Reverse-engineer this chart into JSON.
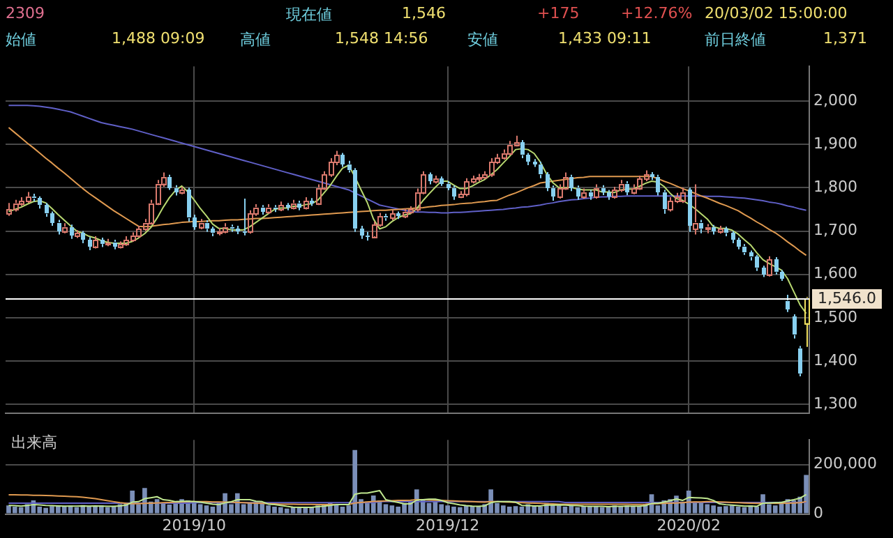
{
  "chart_data": [
    {
      "type": "candlestick",
      "annotations": [
        "2309",
        "現在値",
        "1,546",
        "+175",
        "+12.76%",
        "20/03/02 15:00:00",
        "始値",
        "1,488 09:09",
        "高値",
        "1,548 14:56",
        "安値",
        "1,433 09:11",
        "前日終値",
        "1,371"
      ],
      "categories": [
        null,
        null,
        null,
        null,
        null,
        null,
        null,
        null,
        null,
        null,
        null,
        null,
        null,
        null,
        null,
        null,
        null,
        null,
        null,
        null,
        null,
        null,
        null,
        null,
        null,
        null,
        null,
        null,
        null,
        null,
        "2019/10",
        null,
        null,
        null,
        null,
        null,
        null,
        null,
        null,
        null,
        null,
        null,
        null,
        null,
        null,
        null,
        null,
        null,
        null,
        null,
        null,
        null,
        null,
        null,
        null,
        null,
        null,
        null,
        null,
        null,
        null,
        null,
        null,
        null,
        null,
        null,
        null,
        null,
        null,
        null,
        null,
        "2019/12",
        null,
        null,
        null,
        null,
        null,
        null,
        null,
        null,
        null,
        null,
        null,
        null,
        null,
        null,
        null,
        null,
        null,
        null,
        null,
        null,
        null,
        null,
        null,
        null,
        null,
        null,
        null,
        null,
        null,
        null,
        null,
        null,
        null,
        null,
        null,
        null,
        null,
        null,
        "2020/02",
        null,
        null,
        null,
        null,
        null,
        null,
        null,
        null,
        null,
        null,
        null,
        null,
        null,
        null,
        null,
        null,
        null,
        null,
        null
      ],
      "ohlc": [
        [
          1740,
          1765,
          1735,
          1750
        ],
        [
          1750,
          1772,
          1745,
          1765
        ],
        [
          1765,
          1778,
          1758,
          1770
        ],
        [
          1770,
          1790,
          1765,
          1780
        ],
        [
          1780,
          1786,
          1768,
          1775
        ],
        [
          1775,
          1780,
          1752,
          1760
        ],
        [
          1760,
          1765,
          1733,
          1740
        ],
        [
          1740,
          1745,
          1712,
          1720
        ],
        [
          1720,
          1726,
          1692,
          1700
        ],
        [
          1700,
          1718,
          1695,
          1710
        ],
        [
          1710,
          1715,
          1682,
          1690
        ],
        [
          1690,
          1702,
          1684,
          1695
        ],
        [
          1695,
          1700,
          1672,
          1680
        ],
        [
          1680,
          1686,
          1656,
          1665
        ],
        [
          1665,
          1688,
          1660,
          1680
        ],
        [
          1680,
          1685,
          1663,
          1670
        ],
        [
          1670,
          1682,
          1665,
          1675
        ],
        [
          1675,
          1680,
          1658,
          1665
        ],
        [
          1665,
          1676,
          1660,
          1670
        ],
        [
          1670,
          1688,
          1666,
          1680
        ],
        [
          1680,
          1697,
          1675,
          1690
        ],
        [
          1690,
          1712,
          1685,
          1705
        ],
        [
          1705,
          1728,
          1700,
          1720
        ],
        [
          1720,
          1772,
          1715,
          1765
        ],
        [
          1765,
          1818,
          1760,
          1810
        ],
        [
          1810,
          1835,
          1802,
          1825
        ],
        [
          1825,
          1830,
          1795,
          1800
        ],
        [
          1800,
          1806,
          1782,
          1790
        ],
        [
          1790,
          1802,
          1785,
          1795
        ],
        [
          1795,
          1800,
          1722,
          1730
        ],
        [
          1730,
          1738,
          1703,
          1710
        ],
        [
          1710,
          1728,
          1704,
          1720
        ],
        [
          1720,
          1725,
          1698,
          1705
        ],
        [
          1705,
          1710,
          1688,
          1695
        ],
        [
          1695,
          1707,
          1690,
          1700
        ],
        [
          1700,
          1718,
          1695,
          1710
        ],
        [
          1710,
          1715,
          1698,
          1705
        ],
        [
          1705,
          1712,
          1693,
          1700
        ],
        [
          1700,
          1775,
          1690,
          1698
        ],
        [
          1698,
          1748,
          1694,
          1740
        ],
        [
          1740,
          1762,
          1735,
          1755
        ],
        [
          1755,
          1760,
          1738,
          1745
        ],
        [
          1745,
          1762,
          1740,
          1755
        ],
        [
          1755,
          1760,
          1744,
          1750
        ],
        [
          1750,
          1768,
          1746,
          1760
        ],
        [
          1760,
          1765,
          1748,
          1755
        ],
        [
          1755,
          1772,
          1750,
          1765
        ],
        [
          1765,
          1770,
          1748,
          1755
        ],
        [
          1755,
          1778,
          1750,
          1770
        ],
        [
          1770,
          1776,
          1758,
          1765
        ],
        [
          1765,
          1808,
          1760,
          1800
        ],
        [
          1800,
          1838,
          1795,
          1830
        ],
        [
          1830,
          1868,
          1825,
          1860
        ],
        [
          1860,
          1885,
          1852,
          1875
        ],
        [
          1875,
          1880,
          1848,
          1855
        ],
        [
          1855,
          1862,
          1835,
          1840
        ],
        [
          1840,
          1845,
          1698,
          1705
        ],
        [
          1705,
          1712,
          1682,
          1690
        ],
        [
          1690,
          1698,
          1678,
          1688
        ],
        [
          1688,
          1722,
          1684,
          1715
        ],
        [
          1715,
          1742,
          1710,
          1735
        ],
        [
          1735,
          1740,
          1724,
          1730
        ],
        [
          1730,
          1748,
          1725,
          1740
        ],
        [
          1740,
          1745,
          1728,
          1735
        ],
        [
          1735,
          1752,
          1730,
          1745
        ],
        [
          1745,
          1757,
          1740,
          1750
        ],
        [
          1750,
          1798,
          1745,
          1790
        ],
        [
          1790,
          1838,
          1785,
          1830
        ],
        [
          1830,
          1835,
          1808,
          1815
        ],
        [
          1815,
          1828,
          1810,
          1820
        ],
        [
          1820,
          1826,
          1804,
          1810
        ],
        [
          1810,
          1815,
          1794,
          1800
        ],
        [
          1800,
          1805,
          1772,
          1780
        ],
        [
          1780,
          1792,
          1776,
          1785
        ],
        [
          1785,
          1822,
          1780,
          1815
        ],
        [
          1815,
          1828,
          1810,
          1820
        ],
        [
          1820,
          1832,
          1815,
          1825
        ],
        [
          1825,
          1838,
          1820,
          1830
        ],
        [
          1830,
          1868,
          1825,
          1860
        ],
        [
          1860,
          1878,
          1855,
          1870
        ],
        [
          1870,
          1888,
          1865,
          1880
        ],
        [
          1880,
          1908,
          1875,
          1900
        ],
        [
          1900,
          1920,
          1895,
          1905
        ],
        [
          1905,
          1910,
          1868,
          1875
        ],
        [
          1875,
          1880,
          1852,
          1860
        ],
        [
          1860,
          1866,
          1848,
          1855
        ],
        [
          1855,
          1860,
          1822,
          1830
        ],
        [
          1830,
          1836,
          1792,
          1800
        ],
        [
          1800,
          1805,
          1770,
          1780
        ],
        [
          1780,
          1808,
          1775,
          1800
        ],
        [
          1800,
          1835,
          1795,
          1825
        ],
        [
          1825,
          1830,
          1792,
          1800
        ],
        [
          1800,
          1805,
          1772,
          1780
        ],
        [
          1780,
          1798,
          1775,
          1790
        ],
        [
          1790,
          1795,
          1772,
          1780
        ],
        [
          1780,
          1808,
          1775,
          1800
        ],
        [
          1800,
          1806,
          1783,
          1790
        ],
        [
          1790,
          1795,
          1772,
          1780
        ],
        [
          1780,
          1802,
          1775,
          1795
        ],
        [
          1795,
          1818,
          1790,
          1810
        ],
        [
          1810,
          1815,
          1783,
          1790
        ],
        [
          1790,
          1808,
          1785,
          1800
        ],
        [
          1800,
          1828,
          1795,
          1820
        ],
        [
          1820,
          1840,
          1815,
          1830
        ],
        [
          1830,
          1836,
          1818,
          1825
        ],
        [
          1825,
          1830,
          1782,
          1790
        ],
        [
          1790,
          1795,
          1740,
          1750
        ],
        [
          1750,
          1778,
          1745,
          1770
        ],
        [
          1770,
          1788,
          1765,
          1780
        ],
        [
          1770,
          1800,
          1765,
          1790
        ],
        [
          1795,
          1800,
          1698,
          1712
        ],
        [
          1705,
          1808,
          1692,
          1720
        ],
        [
          1720,
          1726,
          1695,
          1705
        ],
        [
          1705,
          1716,
          1695,
          1710
        ],
        [
          1710,
          1714,
          1692,
          1700
        ],
        [
          1700,
          1712,
          1694,
          1705
        ],
        [
          1705,
          1710,
          1688,
          1695
        ],
        [
          1695,
          1700,
          1672,
          1680
        ],
        [
          1680,
          1685,
          1658,
          1665
        ],
        [
          1665,
          1670,
          1645,
          1650
        ],
        [
          1650,
          1655,
          1632,
          1640
        ],
        [
          1640,
          1645,
          1608,
          1615
        ],
        [
          1615,
          1620,
          1594,
          1600
        ],
        [
          1600,
          1642,
          1595,
          1635
        ],
        [
          1635,
          1640,
          1600,
          1605
        ],
        [
          1605,
          1610,
          1585,
          1590
        ],
        [
          1540,
          1553,
          1513,
          1520
        ],
        [
          1503,
          1508,
          1452,
          1460
        ],
        [
          1430,
          1435,
          1365,
          1371
        ],
        [
          1488,
          1548,
          1433,
          1546
        ]
      ],
      "colors": [
        "#d8786c",
        "#d8786c",
        "#d8786c",
        "#d8786c",
        "#88d0f0",
        "#88d0f0",
        "#88d0f0",
        "#88d0f0",
        "#88d0f0",
        "#d8786c",
        "#88d0f0",
        "#d8786c",
        "#88d0f0",
        "#88d0f0",
        "#d8786c",
        "#88d0f0",
        "#d8786c",
        "#88d0f0",
        "#d8786c",
        "#d8786c",
        "#d8786c",
        "#d8786c",
        "#d8786c",
        "#d8786c",
        "#d8786c",
        "#d8786c",
        "#88d0f0",
        "#88d0f0",
        "#d8786c",
        "#88d0f0",
        "#88d0f0",
        "#d8786c",
        "#88d0f0",
        "#88d0f0",
        "#d8786c",
        "#d8786c",
        "#88d0f0",
        "#88d0f0",
        "#88d0f0",
        "#d8786c",
        "#d8786c",
        "#88d0f0",
        "#d8786c",
        "#88d0f0",
        "#d8786c",
        "#88d0f0",
        "#d8786c",
        "#88d0f0",
        "#d8786c",
        "#88d0f0",
        "#d8786c",
        "#d8786c",
        "#d8786c",
        "#d8786c",
        "#88d0f0",
        "#88d0f0",
        "#88d0f0",
        "#88d0f0",
        "#88d0f0",
        "#d8786c",
        "#d8786c",
        "#88d0f0",
        "#d8786c",
        "#88d0f0",
        "#d8786c",
        "#d8786c",
        "#d8786c",
        "#d8786c",
        "#88d0f0",
        "#d8786c",
        "#88d0f0",
        "#88d0f0",
        "#88d0f0",
        "#d8786c",
        "#d8786c",
        "#d8786c",
        "#d8786c",
        "#d8786c",
        "#d8786c",
        "#d8786c",
        "#d8786c",
        "#d8786c",
        "#d8786c",
        "#88d0f0",
        "#88d0f0",
        "#88d0f0",
        "#88d0f0",
        "#88d0f0",
        "#88d0f0",
        "#d8786c",
        "#d8786c",
        "#88d0f0",
        "#88d0f0",
        "#d8786c",
        "#88d0f0",
        "#d8786c",
        "#88d0f0",
        "#88d0f0",
        "#d8786c",
        "#d8786c",
        "#88d0f0",
        "#d8786c",
        "#d8786c",
        "#d8786c",
        "#88d0f0",
        "#88d0f0",
        "#88d0f0",
        "#d8786c",
        "#d8786c",
        "#d8786c",
        "#88d0f0",
        "#d8786c",
        "#88d0f0",
        "#d8786c",
        "#88d0f0",
        "#d8786c",
        "#88d0f0",
        "#88d0f0",
        "#88d0f0",
        "#88d0f0",
        "#88d0f0",
        "#88d0f0",
        "#88d0f0",
        "#d8786c",
        "#88d0f0",
        "#88d0f0",
        "#88d0f0",
        "#88d0f0",
        "#88d0f0",
        "#f0e060"
      ],
      "series": [
        {
          "type": "line",
          "color": "#b8d870",
          "values": [
            1745,
            1750,
            1755,
            1762,
            1768,
            1770,
            1765,
            1752,
            1738,
            1725,
            1712,
            1700,
            1695,
            1688,
            1684,
            1678,
            1674,
            1672,
            1672,
            1672,
            1676,
            1684,
            1694,
            1708,
            1730,
            1755,
            1777,
            1794,
            1804,
            1790,
            1772,
            1752,
            1735,
            1716,
            1706,
            1706,
            1703,
            1702,
            1703,
            1710,
            1720,
            1730,
            1740,
            1750,
            1753,
            1753,
            1757,
            1757,
            1761,
            1763,
            1771,
            1788,
            1805,
            1826,
            1845,
            1852,
            1825,
            1795,
            1766,
            1728,
            1705,
            1710,
            1722,
            1731,
            1737,
            1740,
            1752,
            1770,
            1786,
            1801,
            1815,
            1815,
            1806,
            1798,
            1798,
            1804,
            1812,
            1819,
            1830,
            1842,
            1857,
            1872,
            1888,
            1890,
            1888,
            1879,
            1859,
            1832,
            1812,
            1800,
            1800,
            1801,
            1797,
            1795,
            1795,
            1795,
            1790,
            1790,
            1789,
            1795,
            1797,
            1797,
            1803,
            1810,
            1815,
            1813,
            1803,
            1787,
            1775,
            1771,
            1762,
            1752,
            1740,
            1728,
            1710,
            1706,
            1706,
            1702,
            1693,
            1680,
            1668,
            1650,
            1634,
            1625,
            1618,
            1610,
            1590,
            1560,
            1530,
            1510
          ]
        },
        {
          "type": "line",
          "color": "#e09a50",
          "values": [
            1939,
            1927,
            1915,
            1903,
            1892,
            1880,
            1868,
            1857,
            1845,
            1834,
            1822,
            1810,
            1798,
            1787,
            1777,
            1767,
            1757,
            1747,
            1738,
            1729,
            1720,
            1711,
            1710,
            1711,
            1713,
            1715,
            1716,
            1718,
            1720,
            1721,
            1722,
            1722,
            1723,
            1724,
            1724,
            1725,
            1726,
            1726,
            1727,
            1728,
            1729,
            1729,
            1730,
            1731,
            1732,
            1733,
            1734,
            1735,
            1736,
            1737,
            1738,
            1739,
            1740,
            1741,
            1742,
            1743,
            1744,
            1745,
            1746,
            1747,
            1748,
            1748,
            1749,
            1750,
            1751,
            1752,
            1753,
            1754,
            1756,
            1757,
            1759,
            1760,
            1761,
            1763,
            1764,
            1765,
            1767,
            1768,
            1770,
            1771,
            1777,
            1783,
            1788,
            1794,
            1800,
            1805,
            1811,
            1813,
            1815,
            1817,
            1819,
            1821,
            1823,
            1824,
            1826,
            1826,
            1826,
            1826,
            1826,
            1826,
            1826,
            1826,
            1826,
            1826,
            1826,
            1821,
            1815,
            1810,
            1804,
            1798,
            1793,
            1787,
            1781,
            1776,
            1770,
            1764,
            1759,
            1753,
            1747,
            1738,
            1730,
            1721,
            1713,
            1704,
            1696,
            1686,
            1675,
            1665,
            1654,
            1644
          ]
        },
        {
          "type": "line",
          "color": "#6060c8",
          "values": [
            1990,
            1990,
            1990,
            1990,
            1989,
            1988,
            1986,
            1984,
            1981,
            1978,
            1975,
            1970,
            1965,
            1960,
            1955,
            1950,
            1947,
            1944,
            1941,
            1938,
            1935,
            1931,
            1927,
            1923,
            1919,
            1915,
            1911,
            1907,
            1903,
            1899,
            1895,
            1891,
            1887,
            1883,
            1879,
            1875,
            1871,
            1867,
            1863,
            1859,
            1855,
            1851,
            1847,
            1843,
            1839,
            1835,
            1831,
            1827,
            1823,
            1819,
            1815,
            1811,
            1807,
            1803,
            1799,
            1795,
            1788,
            1781,
            1774,
            1767,
            1760,
            1757,
            1754,
            1751,
            1748,
            1745,
            1744,
            1744,
            1743,
            1743,
            1742,
            1742,
            1743,
            1743,
            1744,
            1745,
            1746,
            1747,
            1748,
            1749,
            1750,
            1752,
            1753,
            1755,
            1756,
            1758,
            1760,
            1763,
            1765,
            1768,
            1770,
            1772,
            1773,
            1775,
            1776,
            1778,
            1779,
            1779,
            1780,
            1780,
            1781,
            1781,
            1781,
            1781,
            1781,
            1781,
            1781,
            1781,
            1781,
            1781,
            1781,
            1781,
            1781,
            1780,
            1780,
            1780,
            1779,
            1778,
            1777,
            1776,
            1774,
            1772,
            1770,
            1767,
            1765,
            1762,
            1758,
            1755,
            1751,
            1748
          ]
        }
      ],
      "ylim": [
        1280,
        2080
      ],
      "yticks": [
        {
          "value": 1300,
          "label": "1,300"
        },
        {
          "value": 1400,
          "label": "1,400"
        },
        {
          "value": 1500,
          "label": "1,500"
        },
        {
          "value": 1600,
          "label": "1,600"
        },
        {
          "value": 1700,
          "label": "1,700"
        },
        {
          "value": 1800,
          "label": "1,800"
        },
        {
          "value": 1900,
          "label": "1,900"
        },
        {
          "value": 2000,
          "label": "2,000"
        }
      ],
      "ref_lines": [
        {
          "axis": "y",
          "value": 1546,
          "label": "1,546.0",
          "color": "#ffffff"
        }
      ],
      "grid": true,
      "tick_labels": "y",
      "marker": "none"
    },
    {
      "type": "bar",
      "title": "出来高",
      "categories": [
        null,
        null,
        null,
        null,
        null,
        null,
        null,
        null,
        null,
        null,
        null,
        null,
        null,
        null,
        null,
        null,
        null,
        null,
        null,
        null,
        null,
        null,
        null,
        null,
        null,
        null,
        null,
        null,
        null,
        null,
        "2019/10",
        null,
        null,
        null,
        null,
        null,
        null,
        null,
        null,
        null,
        null,
        null,
        null,
        null,
        null,
        null,
        null,
        null,
        null,
        null,
        null,
        null,
        null,
        null,
        null,
        null,
        null,
        null,
        null,
        null,
        null,
        null,
        null,
        null,
        null,
        null,
        null,
        null,
        null,
        null,
        null,
        "2019/12",
        null,
        null,
        null,
        null,
        null,
        null,
        null,
        null,
        null,
        null,
        null,
        null,
        null,
        null,
        null,
        null,
        null,
        null,
        null,
        null,
        null,
        null,
        null,
        null,
        null,
        null,
        null,
        null,
        null,
        null,
        null,
        null,
        null,
        null,
        null,
        null,
        null,
        null,
        "2020/02",
        null,
        null,
        null,
        null,
        null,
        null,
        null,
        null,
        null,
        null,
        null,
        null,
        null,
        null,
        null,
        null,
        null,
        null,
        null
      ],
      "series": [
        {
          "color": "#7b8fb8",
          "values": [
            35000,
            30000,
            28000,
            40000,
            55000,
            30000,
            25000,
            32000,
            35000,
            30000,
            34000,
            28000,
            36000,
            32000,
            30000,
            35000,
            28000,
            30000,
            40000,
            45000,
            95000,
            40000,
            105000,
            50000,
            60000,
            45000,
            38000,
            48000,
            60000,
            55000,
            50000,
            40000,
            35000,
            30000,
            45000,
            84000,
            40000,
            84000,
            40000,
            45000,
            50000,
            42000,
            35000,
            30000,
            28000,
            22000,
            30000,
            25000,
            28000,
            30000,
            35000,
            40000,
            45000,
            38000,
            30000,
            35000,
            259000,
            60000,
            50000,
            75000,
            55000,
            40000,
            35000,
            30000,
            45000,
            50000,
            100000,
            60000,
            45000,
            50000,
            40000,
            35000,
            30000,
            28000,
            35000,
            30000,
            30000,
            40000,
            100000,
            45000,
            35000,
            30000,
            32000,
            30000,
            40000,
            35000,
            30000,
            45000,
            40000,
            35000,
            30000,
            35000,
            28000,
            30000,
            32000,
            30000,
            28000,
            30000,
            35000,
            30000,
            35000,
            30000,
            32000,
            40000,
            80000,
            35000,
            55000,
            60000,
            74000,
            50000,
            95000,
            50000,
            45000,
            40000,
            35000,
            30000,
            32000,
            35000,
            30000,
            28000,
            35000,
            30000,
            80000,
            40000,
            35000,
            50000,
            60000,
            55000,
            70000,
            158000
          ]
        },
        {
          "type": "line",
          "color": "#c0e890",
          "values": [
            35000,
            34000,
            32000,
            35000,
            38000,
            37000,
            35000,
            34000,
            33000,
            32000,
            32000,
            32000,
            33000,
            32000,
            33000,
            32000,
            31000,
            31000,
            33000,
            36000,
            48000,
            50000,
            62000,
            66000,
            70000,
            58000,
            55000,
            50000,
            52000,
            52000,
            50000,
            48000,
            44000,
            40000,
            38000,
            45000,
            50000,
            58000,
            58000,
            58000,
            52000,
            50000,
            40000,
            38000,
            35000,
            31000,
            28000,
            27000,
            27000,
            27000,
            30000,
            32000,
            35000,
            38000,
            38000,
            38000,
            80000,
            85000,
            85000,
            90000,
            95000,
            58000,
            52000,
            47000,
            41000,
            41000,
            56000,
            58000,
            60000,
            60000,
            55000,
            46000,
            42000,
            37000,
            34000,
            32000,
            31000,
            33000,
            46000,
            50000,
            50000,
            50000,
            48000,
            35000,
            34000,
            33000,
            33000,
            36000,
            36000,
            37000,
            36000,
            35000,
            34000,
            32000,
            31000,
            31000,
            31000,
            30000,
            31000,
            31000,
            32000,
            32000,
            32000,
            34000,
            43000,
            43000,
            48000,
            54000,
            61000,
            55000,
            67000,
            66000,
            65000,
            63000,
            55000,
            41000,
            38000,
            36000,
            34000,
            32000,
            32000,
            31000,
            44000,
            45000,
            46000,
            47000,
            53000,
            58000,
            64000,
            79000
          ]
        },
        {
          "type": "line",
          "color": "#e09a50",
          "values": [
            78000,
            78000,
            77000,
            77000,
            76000,
            76000,
            75000,
            74000,
            73000,
            72000,
            71000,
            70000,
            68000,
            65000,
            62000,
            58000,
            54000,
            50000,
            46000,
            43000,
            42000,
            42000,
            43000,
            44000,
            45000,
            46000,
            47000,
            48000,
            49000,
            50000,
            50000,
            50000,
            50000,
            49000,
            49000,
            48000,
            48000,
            47000,
            46000,
            45000,
            44000,
            43000,
            42000,
            41000,
            40000,
            40000,
            40000,
            39000,
            39000,
            39000,
            38000,
            38000,
            38000,
            38000,
            38000,
            38000,
            45000,
            47000,
            49000,
            51000,
            52000,
            53000,
            54000,
            55000,
            55000,
            56000,
            58000,
            58000,
            57000,
            56000,
            55000,
            54000,
            53000,
            52000,
            51000,
            50000,
            49000,
            48000,
            50000,
            50000,
            49000,
            48000,
            47000,
            46000,
            45000,
            44000,
            43000,
            42000,
            41000,
            40000,
            40000,
            40000,
            40000,
            40000,
            40000,
            40000,
            40000,
            40000,
            40000,
            40000,
            40000,
            39000,
            39000,
            40000,
            42000,
            42000,
            43000,
            44000,
            45000,
            46000,
            48000,
            49000,
            49000,
            50000,
            50000,
            49000,
            48000,
            47000,
            46000,
            45000,
            44000,
            43000,
            44000,
            44000,
            43000,
            43000,
            44000,
            45000,
            46000,
            50000
          ]
        },
        {
          "type": "line",
          "color": "#6060c8",
          "values": [
            44000,
            44000,
            44000,
            44000,
            44000,
            44000,
            44000,
            44000,
            44000,
            44000,
            44000,
            44000,
            44000,
            44000,
            44000,
            44000,
            44000,
            44000,
            44000,
            44000,
            44000,
            44000,
            44000,
            44000,
            44000,
            44000,
            44000,
            44000,
            44000,
            44000,
            46000,
            46000,
            46000,
            46000,
            46000,
            46000,
            46000,
            46000,
            46000,
            46000,
            46000,
            46000,
            46000,
            46000,
            46000,
            46000,
            46000,
            46000,
            46000,
            46000,
            46000,
            46000,
            46000,
            46000,
            46000,
            46000,
            46000,
            46000,
            46000,
            46000,
            50000,
            50000,
            50000,
            50000,
            50000,
            50000,
            50000,
            50000,
            50000,
            50000,
            50000,
            50000,
            50000,
            50000,
            50000,
            50000,
            50000,
            50000,
            50000,
            50000,
            50000,
            50000,
            50000,
            50000,
            50000,
            50000,
            50000,
            50000,
            50000,
            50000,
            47000,
            47000,
            47000,
            47000,
            47000,
            47000,
            47000,
            47000,
            47000,
            47000,
            47000,
            47000,
            47000,
            47000,
            47000,
            47000,
            47000,
            47000,
            47000,
            47000,
            47000,
            47000,
            47000,
            47000,
            47000,
            47000,
            47000,
            47000,
            47000,
            47000,
            47000,
            47000,
            47000,
            47000,
            47000,
            47000,
            47000,
            47000,
            47000,
            47000
          ]
        }
      ],
      "ylim": [
        0,
        300000
      ],
      "yticks": [
        0,
        {
          "value": 200000,
          "label": "200,000"
        }
      ],
      "grid": true,
      "marker": "none"
    }
  ]
}
